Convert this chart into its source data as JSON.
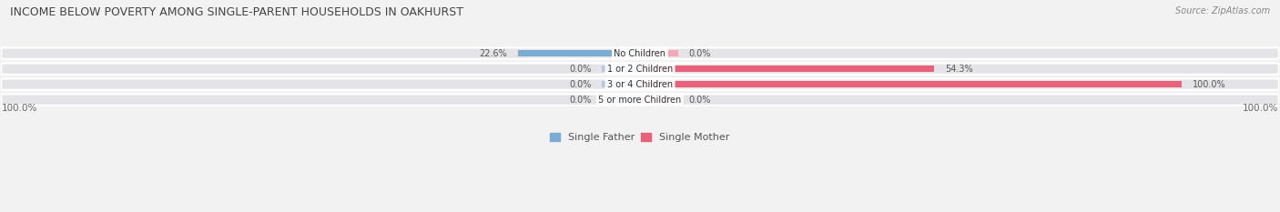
{
  "title": "INCOME BELOW POVERTY AMONG SINGLE-PARENT HOUSEHOLDS IN OAKHURST",
  "source": "Source: ZipAtlas.com",
  "categories": [
    "No Children",
    "1 or 2 Children",
    "3 or 4 Children",
    "5 or more Children"
  ],
  "single_father": [
    22.6,
    0.0,
    0.0,
    0.0
  ],
  "single_mother": [
    0.0,
    54.3,
    100.0,
    0.0
  ],
  "father_color": "#7badd4",
  "mother_color": "#e8607a",
  "father_color_light": "#aec9e4",
  "mother_color_light": "#f2a8b5",
  "bg_color": "#f2f2f2",
  "row_bg_color": "#e4e4e8",
  "title_color": "#444444",
  "text_color": "#555555",
  "max_val": 100.0,
  "stub_size": 7.0,
  "figsize": [
    14.06,
    2.33
  ],
  "dpi": 100
}
